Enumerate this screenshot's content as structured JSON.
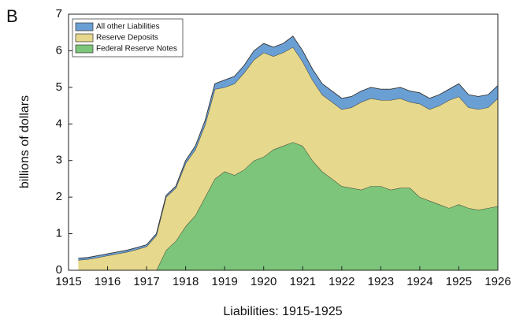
{
  "chart_data": {
    "type": "stacked_area",
    "panel_label": "B",
    "title": "Liabilities: 1915-1925",
    "ylabel": "billions of dollars",
    "x": [
      1915.25,
      1915.5,
      1915.75,
      1916,
      1916.25,
      1916.5,
      1916.75,
      1917,
      1917.25,
      1917.5,
      1917.75,
      1918,
      1918.25,
      1918.5,
      1918.75,
      1919,
      1919.25,
      1919.5,
      1919.75,
      1920,
      1920.25,
      1920.5,
      1920.75,
      1921,
      1921.25,
      1921.5,
      1921.75,
      1922,
      1922.25,
      1922.5,
      1922.75,
      1923,
      1923.25,
      1923.5,
      1923.75,
      1924,
      1924.25,
      1924.5,
      1924.75,
      1925,
      1925.25,
      1925.5,
      1925.75,
      1926
    ],
    "series": [
      {
        "name": "Federal Reserve Notes",
        "color": "#7cc57a",
        "values": [
          0,
          0,
          0,
          0,
          0,
          0,
          0,
          0,
          0,
          0.55,
          0.8,
          1.2,
          1.5,
          2.0,
          2.5,
          2.7,
          2.6,
          2.75,
          3.0,
          3.1,
          3.3,
          3.4,
          3.5,
          3.4,
          3.0,
          2.7,
          2.5,
          2.3,
          2.25,
          2.2,
          2.3,
          2.3,
          2.2,
          2.25,
          2.25,
          2.0,
          1.9,
          1.8,
          1.7,
          1.8,
          1.7,
          1.65,
          1.7,
          1.75
        ]
      },
      {
        "name": "Reserve Deposits",
        "color": "#e6d88c",
        "values": [
          0.28,
          0.3,
          0.35,
          0.4,
          0.45,
          0.5,
          0.57,
          0.65,
          0.95,
          1.45,
          1.45,
          1.72,
          1.8,
          1.98,
          2.45,
          2.3,
          2.5,
          2.65,
          2.75,
          2.85,
          2.55,
          2.55,
          2.6,
          2.3,
          2.2,
          2.1,
          2.1,
          2.1,
          2.2,
          2.4,
          2.4,
          2.35,
          2.45,
          2.45,
          2.35,
          2.55,
          2.5,
          2.7,
          2.95,
          2.95,
          2.75,
          2.75,
          2.75,
          2.95
        ]
      },
      {
        "name": "All other Liabilities",
        "color": "#6a9fd4",
        "values": [
          0.05,
          0.05,
          0.05,
          0.05,
          0.05,
          0.05,
          0.05,
          0.05,
          0.05,
          0.05,
          0.05,
          0.08,
          0.1,
          0.12,
          0.15,
          0.2,
          0.2,
          0.2,
          0.25,
          0.25,
          0.25,
          0.25,
          0.3,
          0.3,
          0.3,
          0.3,
          0.3,
          0.3,
          0.3,
          0.3,
          0.3,
          0.3,
          0.3,
          0.3,
          0.3,
          0.3,
          0.3,
          0.3,
          0.3,
          0.35,
          0.35,
          0.35,
          0.35,
          0.35
        ]
      }
    ],
    "xlim": [
      1915,
      1926
    ],
    "xticks": [
      1915,
      1916,
      1917,
      1918,
      1919,
      1920,
      1921,
      1922,
      1923,
      1924,
      1925,
      1926
    ],
    "ylim": [
      0,
      7
    ],
    "yticks": [
      0,
      1,
      2,
      3,
      4,
      5,
      6,
      7
    ],
    "legend": "upper left"
  }
}
